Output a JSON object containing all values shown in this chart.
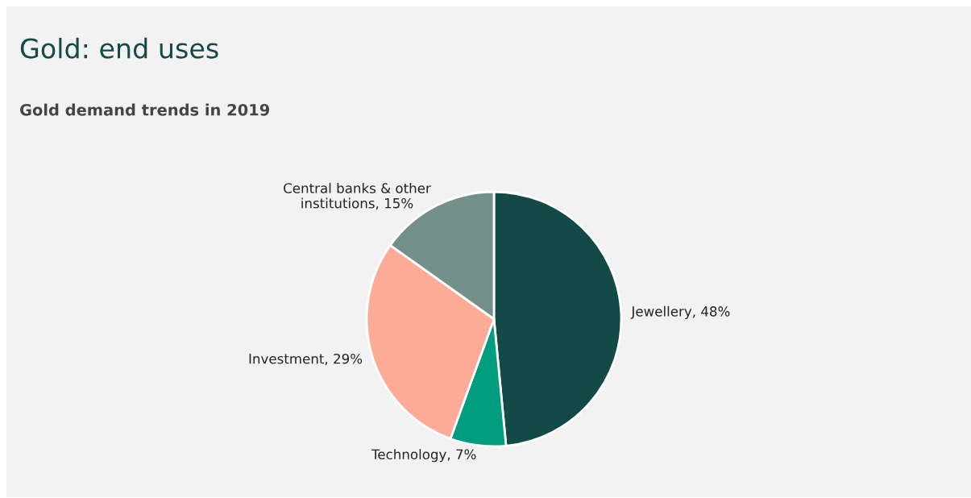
{
  "chart_data": {
    "type": "pie",
    "title": "Gold: end uses",
    "subtitle": "Gold demand trends in 2019",
    "categories": [
      "Jewellery",
      "Technology",
      "Investment",
      "Central banks & other\ninstitutions"
    ],
    "values": [
      48,
      7,
      29,
      15
    ],
    "value_labels": [
      "48%",
      "7%",
      "29%",
      "15%"
    ],
    "colors": [
      "#134a48",
      "#009e7e",
      "#fbab96",
      "#738f8a"
    ],
    "legend": false
  }
}
